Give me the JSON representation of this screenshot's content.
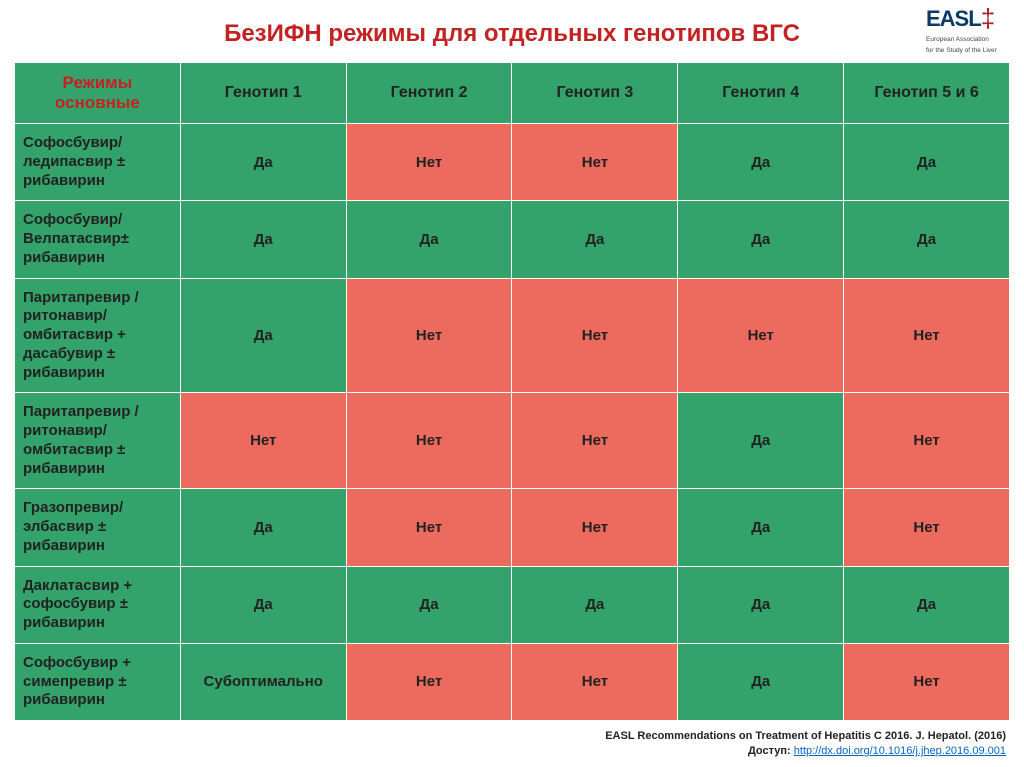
{
  "title": "БезИФН режимы для отдельных генотипов ВГС",
  "logo": {
    "main": "EASL",
    "sub1": "European Association",
    "sub2": "for the Study of the Liver"
  },
  "colors": {
    "yes_bg": "#33a36b",
    "no_bg": "#ec6a5e",
    "header_bg": "#33a36b",
    "title_color": "#c32222"
  },
  "table": {
    "header_first": "Режимы основные",
    "columns": [
      "Генотип 1",
      "Генотип 2",
      "Генотип 3",
      "Генотип 4",
      "Генотип 5 и 6"
    ],
    "rows": [
      {
        "label": "Софосбувир/ледипасвир ± рибавирин",
        "cells": [
          {
            "text": "Да",
            "status": "yes"
          },
          {
            "text": "Нет",
            "status": "no"
          },
          {
            "text": "Нет",
            "status": "no"
          },
          {
            "text": "Да",
            "status": "yes"
          },
          {
            "text": "Да",
            "status": "yes"
          }
        ]
      },
      {
        "label": "Софосбувир/ Велпатасвир± рибавирин",
        "cells": [
          {
            "text": "Да",
            "status": "yes"
          },
          {
            "text": "Да",
            "status": "yes"
          },
          {
            "text": "Да",
            "status": "yes"
          },
          {
            "text": "Да",
            "status": "yes"
          },
          {
            "text": "Да",
            "status": "yes"
          }
        ]
      },
      {
        "label": "Паритапревир /ритонавир/омбитасвир + дасабувир ± рибавирин",
        "cells": [
          {
            "text": "Да",
            "status": "yes"
          },
          {
            "text": "Нет",
            "status": "no"
          },
          {
            "text": "Нет",
            "status": "no"
          },
          {
            "text": "Нет",
            "status": "no"
          },
          {
            "text": "Нет",
            "status": "no"
          }
        ]
      },
      {
        "label": "Паритапревир /ритонавир/омбитасвир ± рибавирин",
        "cells": [
          {
            "text": "Нет",
            "status": "no"
          },
          {
            "text": "Нет",
            "status": "no"
          },
          {
            "text": "Нет",
            "status": "no"
          },
          {
            "text": "Да",
            "status": "yes"
          },
          {
            "text": "Нет",
            "status": "no"
          }
        ]
      },
      {
        "label": "Гразопревир/элбасвир ± рибавирин",
        "cells": [
          {
            "text": "Да",
            "status": "yes"
          },
          {
            "text": "Нет",
            "status": "no"
          },
          {
            "text": "Нет",
            "status": "no"
          },
          {
            "text": "Да",
            "status": "yes"
          },
          {
            "text": "Нет",
            "status": "no"
          }
        ]
      },
      {
        "label": "Даклатасвир + софосбувир ± рибавирин",
        "cells": [
          {
            "text": "Да",
            "status": "yes"
          },
          {
            "text": "Да",
            "status": "yes"
          },
          {
            "text": "Да",
            "status": "yes"
          },
          {
            "text": "Да",
            "status": "yes"
          },
          {
            "text": "Да",
            "status": "yes"
          }
        ]
      },
      {
        "label": "Софосбувир  + симепревир ± рибавирин",
        "cells": [
          {
            "text": "Субоптимально",
            "status": "yes"
          },
          {
            "text": "Нет",
            "status": "no"
          },
          {
            "text": "Нет",
            "status": "no"
          },
          {
            "text": "Да",
            "status": "yes"
          },
          {
            "text": "Нет",
            "status": "no"
          }
        ]
      }
    ]
  },
  "footer": {
    "line1": "EASL Recommendations on Treatment of Hepatitis C 2016. J. Hepatol. (2016)",
    "access_label": "Доступ: ",
    "link_text": "http://dx.doi.org/10.1016/j.jhep.2016.09.001"
  }
}
